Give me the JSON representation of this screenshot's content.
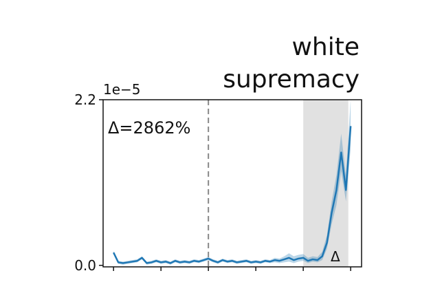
{
  "chart_data": {
    "type": "line",
    "title": [
      "white",
      "supremacy"
    ],
    "y_offset_label": "1e−5",
    "annotations": [
      "Δ=2862%",
      "Δ"
    ],
    "x": [
      0,
      1,
      2,
      3,
      4,
      5,
      6,
      7,
      8,
      9,
      10,
      11,
      12,
      13,
      14,
      15,
      16,
      17,
      18,
      19,
      20,
      21,
      22,
      23,
      24,
      25,
      26,
      27,
      28,
      29,
      30,
      31,
      32,
      33,
      34,
      35,
      36,
      37,
      38,
      39,
      40,
      41,
      42,
      43,
      44,
      45,
      46,
      47,
      48,
      49,
      50
    ],
    "xlim": [
      -2.2,
      52.3
    ],
    "xticks": [
      0,
      10,
      20,
      30,
      40,
      50
    ],
    "ylim": [
      -0.02,
      2.2
    ],
    "yticks": [
      {
        "value": 0,
        "label": "0.0"
      },
      2.2
    ],
    "vline": 20,
    "span": [
      40,
      49.5
    ],
    "color": "#1f77b4",
    "values": [
      0.17,
      0.04,
      0.03,
      0.04,
      0.05,
      0.06,
      0.1,
      0.03,
      0.04,
      0.06,
      0.04,
      0.05,
      0.03,
      0.06,
      0.04,
      0.05,
      0.04,
      0.06,
      0.05,
      0.07,
      0.09,
      0.06,
      0.04,
      0.07,
      0.05,
      0.06,
      0.04,
      0.05,
      0.06,
      0.04,
      0.05,
      0.04,
      0.06,
      0.05,
      0.07,
      0.06,
      0.08,
      0.1,
      0.07,
      0.09,
      0.1,
      0.06,
      0.08,
      0.07,
      0.12,
      0.3,
      0.7,
      1.0,
      1.5,
      1.0,
      1.85
    ],
    "ci_upper": [
      0.19,
      0.06,
      0.05,
      0.06,
      0.07,
      0.08,
      0.12,
      0.05,
      0.06,
      0.08,
      0.06,
      0.07,
      0.05,
      0.08,
      0.06,
      0.07,
      0.06,
      0.08,
      0.07,
      0.09,
      0.11,
      0.08,
      0.06,
      0.09,
      0.07,
      0.08,
      0.06,
      0.07,
      0.08,
      0.06,
      0.07,
      0.06,
      0.08,
      0.07,
      0.1,
      0.09,
      0.12,
      0.16,
      0.12,
      0.14,
      0.15,
      0.1,
      0.12,
      0.11,
      0.18,
      0.4,
      0.85,
      1.2,
      1.75,
      1.2,
      2.2
    ],
    "ci_lower": [
      0.15,
      0.02,
      0.01,
      0.02,
      0.03,
      0.04,
      0.08,
      0.01,
      0.02,
      0.04,
      0.02,
      0.03,
      0.01,
      0.04,
      0.02,
      0.03,
      0.02,
      0.04,
      0.03,
      0.05,
      0.07,
      0.04,
      0.02,
      0.05,
      0.03,
      0.04,
      0.02,
      0.03,
      0.04,
      0.02,
      0.03,
      0.02,
      0.04,
      0.03,
      0.04,
      0.03,
      0.04,
      0.05,
      0.03,
      0.05,
      0.06,
      0.03,
      0.05,
      0.04,
      0.07,
      0.22,
      0.55,
      0.8,
      1.25,
      0.85,
      1.55
    ]
  }
}
